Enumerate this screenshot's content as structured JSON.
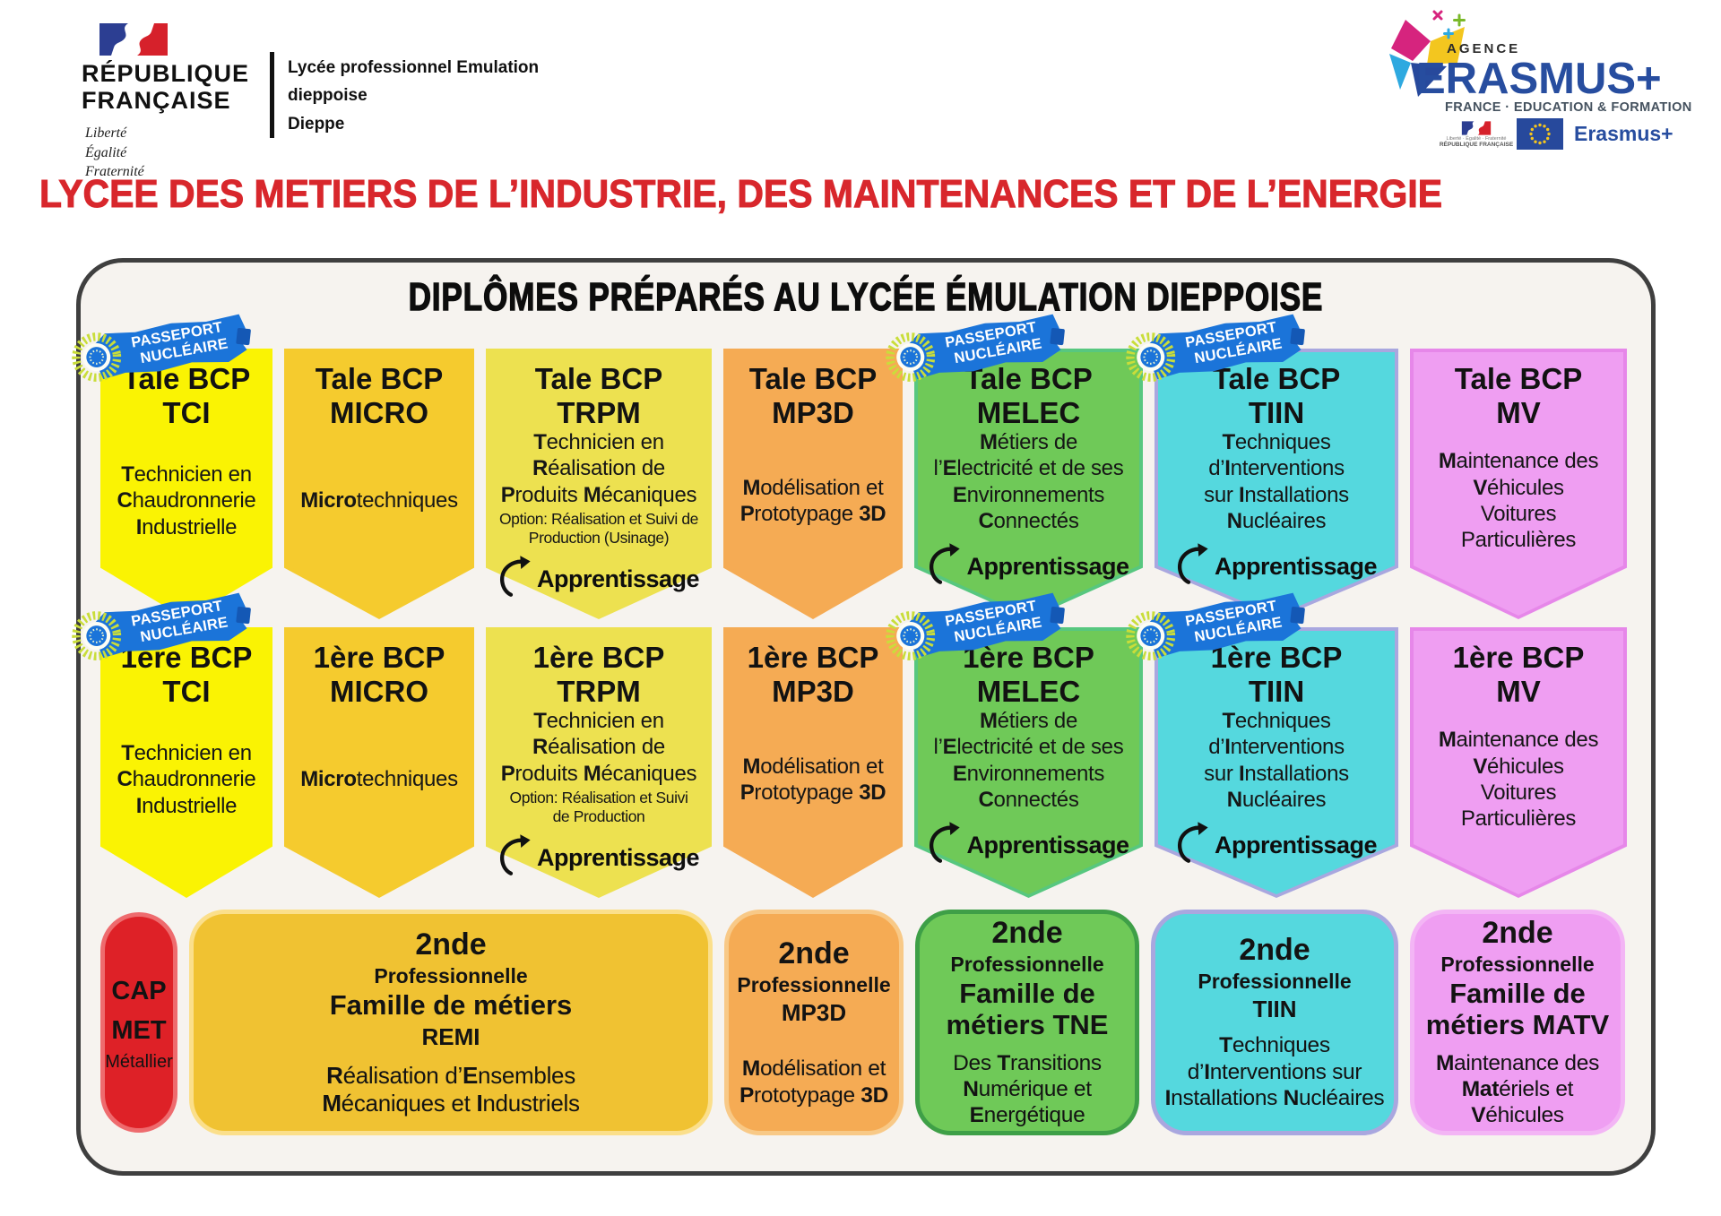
{
  "header": {
    "gov": {
      "line1": "RÉPUBLIQUE",
      "line2": "FRANÇAISE",
      "motto": [
        "Liberté",
        "Égalité",
        "Fraternité"
      ]
    },
    "school": {
      "line1": "Lycée professionnel Emulation dieppoise",
      "line2": "Dieppe"
    },
    "erasmus": {
      "agency_label": "AGENCE",
      "brand": "ERASMUS+",
      "subtitle": "FRANCE · EDUCATION & FORMATION",
      "rf_mini_motto": "Liberté · Égalité · Fraternité",
      "rf_mini_name": "RÉPUBLIQUE FRANÇAISE",
      "footer_brand": "Erasmus+"
    }
  },
  "page_title": "LYCEE DES METIERS DE L’INDUSTRIE, DES MAINTENANCES ET DE L’ENERGIE",
  "page_title_color": "#D8272C",
  "board": {
    "title": "DIPLÔMES PRÉPARÉS AU LYCÉE ÉMULATION DIEPPOISE",
    "background": "#F6F3EF",
    "border_color": "#3F3F3F",
    "stamp": {
      "line1": "PASSEPORT",
      "line2": "NUCLÉAIRE",
      "color": "#1B74D9"
    },
    "apprentissage_label": "Apprentissage",
    "rows": [
      {
        "name": "Tale BCP",
        "banners": [
          {
            "id": "tale-tci",
            "level": "Tale BCP",
            "code": "TCI",
            "body": "**T**echnicien en\n**C**haudronnerie\n**I**ndustrielle",
            "fill": "#FAF303",
            "passeport_nucleaire": true
          },
          {
            "id": "tale-micro",
            "level": "Tale BCP",
            "code": "MICRO",
            "body": "**Micro**techniques",
            "fill": "#F5CB2E"
          },
          {
            "id": "tale-trpm",
            "level": "Tale BCP",
            "code": "TRPM",
            "body": "**T**echnicien en\n**R**éalisation de\n**P**roduits **M**écaniques",
            "option": "Option: Réalisation et Suivi de\nProduction (Usinage)",
            "apprentissage": true,
            "fill": "#EDE150"
          },
          {
            "id": "tale-mp3d",
            "level": "Tale BCP",
            "code": "MP3D",
            "body": "**M**odélisation et\n**P**rototypage **3D**",
            "fill": "#F5AB54"
          },
          {
            "id": "tale-melec",
            "level": "Tale BCP",
            "code": "MELEC",
            "body": "**M**étiers de\nl’**E**lectricité et de ses\n**E**nvironnements\n**C**onnectés",
            "apprentissage": true,
            "fill": "#6FC958",
            "edge": "#57C77F",
            "passeport_nucleaire": true
          },
          {
            "id": "tale-tiin",
            "level": "Tale BCP",
            "code": "TIIN",
            "body": "**T**echniques\nd’**I**nterventions\nsur **I**nstallations\n**N**ucléaires",
            "apprentissage": true,
            "fill": "#55D8DE",
            "edge": "#A9A7DF",
            "passeport_nucleaire": true
          },
          {
            "id": "tale-mv",
            "level": "Tale BCP",
            "code": "MV",
            "body": "**M**aintenance des\n**V**éhicules\nVoitures\nParticulières",
            "fill": "#EF9EF2",
            "edge": "#E687E9"
          }
        ]
      },
      {
        "name": "1ère BCP",
        "banners": [
          {
            "id": "premiere-tci",
            "level": "1ère BCP",
            "code": "TCI",
            "body": "**T**echnicien en\n**C**haudronnerie\n**I**ndustrielle",
            "fill": "#FAF303",
            "passeport_nucleaire": true
          },
          {
            "id": "premiere-micro",
            "level": "1ère BCP",
            "code": "MICRO",
            "body": "**Micro**techniques",
            "fill": "#F5CB2E"
          },
          {
            "id": "premiere-trpm",
            "level": "1ère BCP",
            "code": "TRPM",
            "body": "**T**echnicien en\n**R**éalisation de\n**P**roduits **M**écaniques",
            "option": "Option: Réalisation et Suivi\nde Production",
            "apprentissage": true,
            "fill": "#EDE150"
          },
          {
            "id": "premiere-mp3d",
            "level": "1ère BCP",
            "code": "MP3D",
            "body": "**M**odélisation et\n**P**rototypage **3D**",
            "fill": "#F5AB54"
          },
          {
            "id": "premiere-melec",
            "level": "1ère BCP",
            "code": "MELEC",
            "body": "**M**étiers de\nl’**E**lectricité et de ses\n**E**nvironnements\n**C**onnectés",
            "apprentissage": true,
            "fill": "#6FC958",
            "edge": "#57C77F",
            "passeport_nucleaire": true
          },
          {
            "id": "premiere-tiin",
            "level": "1ère BCP",
            "code": "TIIN",
            "body": "**T**echniques\nd’**I**nterventions\nsur **I**nstallations\n**N**ucléaires",
            "apprentissage": true,
            "fill": "#55D8DE",
            "edge": "#A9A7DF",
            "passeport_nucleaire": true
          },
          {
            "id": "premiere-mv",
            "level": "1ère BCP",
            "code": "MV",
            "body": "**M**aintenance des\n**V**éhicules\nVoitures\nParticulières",
            "fill": "#EF9EF2",
            "edge": "#E687E9"
          }
        ]
      }
    ],
    "bottom": [
      {
        "id": "cap-met",
        "shape": "pill",
        "line1": "CAP",
        "line2": "MET",
        "sub": "Métallier",
        "fill": "#DE2127",
        "edge": "#EE6B6E"
      },
      {
        "id": "remi",
        "title": "2nde",
        "subtitle": "Professionnelle",
        "family": "Famille de métiers",
        "code": "REMI",
        "body": "**R**éalisation d’**E**nsembles\n**M**écaniques et **I**ndustriels",
        "fill": "#F0C232",
        "edge": "#FBDF8B"
      },
      {
        "id": "mp3d-2nde",
        "title": "2nde",
        "subtitle": "Professionnelle",
        "code": "MP3D",
        "body": "**M**odélisation et\n**P**rototypage **3D**",
        "fill": "#F5AB54",
        "edge": "#F8C987"
      },
      {
        "id": "tne",
        "title": "2nde",
        "subtitle": "Professionnelle",
        "family": "Famille de\nmétiers TNE",
        "body": "Des **T**ransitions\n**N**umérique et\n**E**nergétique",
        "fill": "#6FC958",
        "edge": "#3E9F47"
      },
      {
        "id": "tiin-2nde",
        "title": "2nde",
        "subtitle": "Professionnelle",
        "code": "TIIN",
        "body": "**T**echniques\nd’**I**nterventions sur\n**I**nstallations **N**ucléaires",
        "fill": "#55D8DE",
        "edge": "#A9A7DF"
      },
      {
        "id": "matv",
        "title": "2nde",
        "subtitle": "Professionnelle",
        "family": "Famille de\nmétiers MATV",
        "body": "**M**aintenance des\n**Mat**ériels et\n**V**éhicules",
        "fill": "#EF9EF2",
        "edge": "#F3B5F5"
      }
    ]
  }
}
